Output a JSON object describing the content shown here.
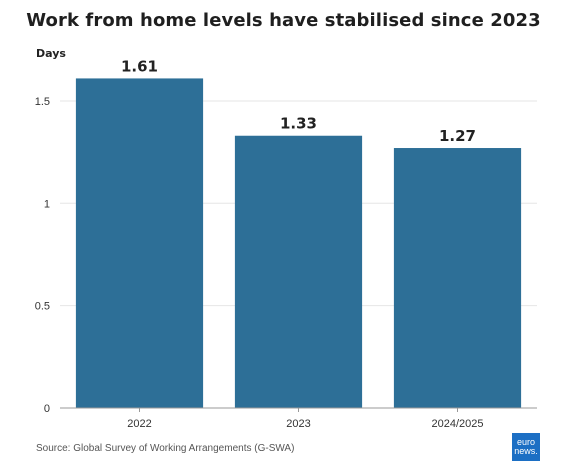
{
  "title": "Work from home levels have stabilised since 2023",
  "source": "Source: Global Survey of Working Arrangements (G-SWA)",
  "logo": {
    "line1": "euro",
    "line2": "news."
  },
  "colors": {
    "bar": "#2d6f97",
    "grid": "#e6e6e6",
    "axis": "#999999"
  },
  "chart_data": {
    "type": "bar",
    "title": "Work from home levels have stabilised since 2023",
    "xlabel": "",
    "ylabel": "Days",
    "categories": [
      "2022",
      "2023",
      "2024/2025"
    ],
    "values": [
      1.61,
      1.33,
      1.27
    ],
    "data_labels": [
      "1.61",
      "1.33",
      "1.27"
    ],
    "ylim": [
      0,
      1.7
    ],
    "yticks": [
      0,
      0.5,
      1,
      1.5
    ],
    "ytick_labels": [
      "0",
      "0.5",
      "1",
      "1.5"
    ],
    "grid": true,
    "legend": "none"
  }
}
